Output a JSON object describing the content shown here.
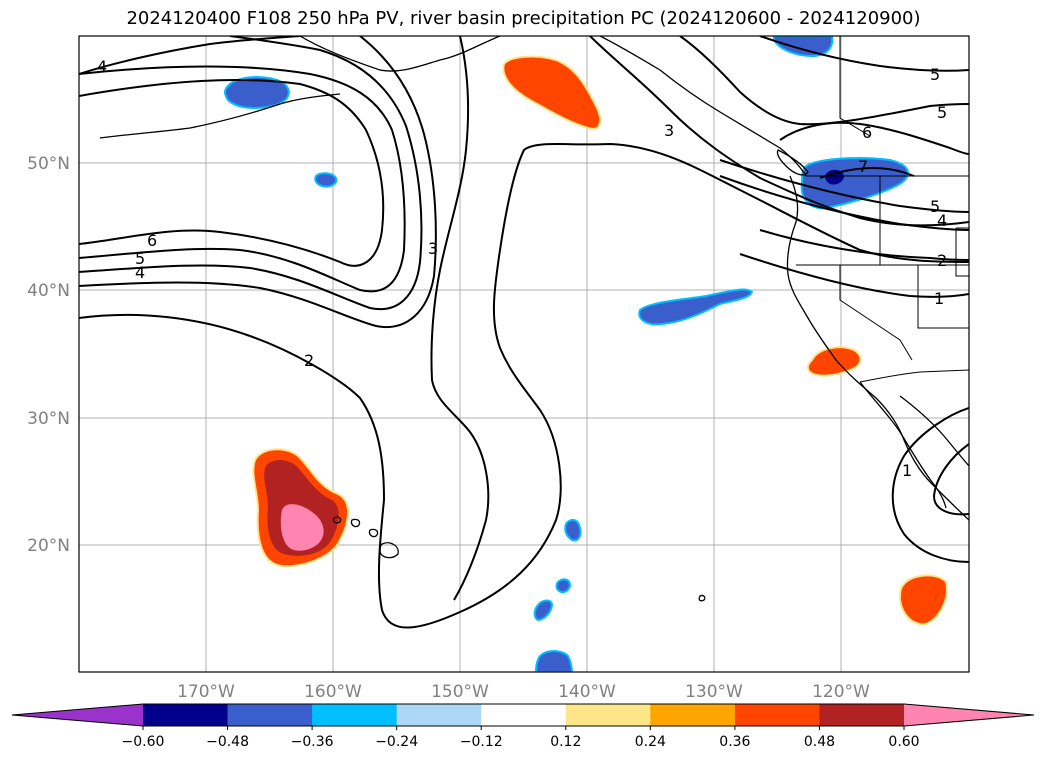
{
  "title": "2024120400 F108 250 hPa PV, river basin precipitation PC (2024120600 - 2024120900)",
  "latitude_labels": [
    "50°N",
    "40°N",
    "30°N",
    "20°N"
  ],
  "longitude_labels": [
    "170°W",
    "160°W",
    "150°W",
    "140°W",
    "130°W",
    "120°W"
  ],
  "colorbar": {
    "tick_labels": [
      "−0.60",
      "−0.48",
      "−0.36",
      "−0.24",
      "−0.12",
      "0.12",
      "0.24",
      "0.36",
      "0.48",
      "0.60"
    ],
    "colors": [
      "#9933cc",
      "#00008b",
      "#3a5fcd",
      "#00bfff",
      "#add8f5",
      "#ffffff",
      "#fde68a",
      "#ffa500",
      "#ff4500",
      "#b22222",
      "#ff85b0"
    ]
  },
  "contour_labels": [
    "4",
    "6",
    "5",
    "4",
    "2",
    "3",
    "3",
    "5",
    "5",
    "6",
    "7",
    "5",
    "4",
    "2",
    "1",
    "1"
  ]
}
